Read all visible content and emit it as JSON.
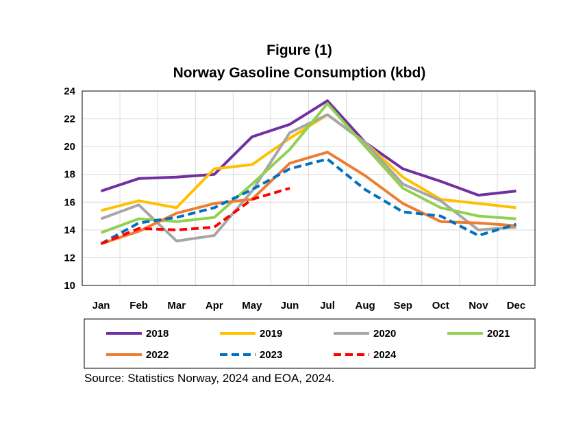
{
  "chart_data": {
    "type": "line",
    "title": "Figure (1)",
    "subtitle": "Norway Gasoline Consumption (kbd)",
    "categories": [
      "Jan",
      "Feb",
      "Mar",
      "Apr",
      "May",
      "Jun",
      "Jul",
      "Aug",
      "Sep",
      "Oct",
      "Nov",
      "Dec"
    ],
    "ylim": [
      10,
      24
    ],
    "yticks": [
      "10",
      "12",
      "14",
      "16",
      "18",
      "20",
      "22",
      "24"
    ],
    "grid": true,
    "legend_position": "bottom",
    "series": [
      {
        "name": "2018",
        "color": "#7030A0",
        "dashed": false,
        "values": [
          16.8,
          17.7,
          17.8,
          18.0,
          20.7,
          21.6,
          23.3,
          20.3,
          18.4,
          17.5,
          16.5,
          16.8
        ]
      },
      {
        "name": "2019",
        "color": "#FFC000",
        "dashed": false,
        "values": [
          15.4,
          16.1,
          15.6,
          18.4,
          18.7,
          20.6,
          22.3,
          20.3,
          17.8,
          16.2,
          15.9,
          15.6
        ]
      },
      {
        "name": "2020",
        "color": "#A6A6A6",
        "dashed": false,
        "values": [
          14.8,
          15.8,
          13.2,
          13.6,
          16.8,
          21.0,
          22.3,
          20.3,
          17.3,
          16.1,
          14.0,
          14.2
        ]
      },
      {
        "name": "2021",
        "color": "#92D050",
        "dashed": false,
        "values": [
          13.8,
          14.8,
          14.6,
          14.9,
          17.3,
          19.8,
          23.1,
          20.0,
          17.0,
          15.6,
          15.0,
          14.8
        ]
      },
      {
        "name": "2022",
        "color": "#ED7D31",
        "dashed": false,
        "values": [
          13.0,
          13.9,
          15.2,
          15.9,
          16.2,
          18.8,
          19.6,
          17.9,
          15.9,
          14.6,
          14.5,
          14.3
        ]
      },
      {
        "name": "2023",
        "color": "#0070C0",
        "dashed": true,
        "values": [
          13.0,
          14.5,
          14.9,
          15.6,
          16.9,
          18.4,
          19.1,
          16.9,
          15.3,
          15.0,
          13.6,
          14.4
        ]
      },
      {
        "name": "2024",
        "color": "#FF0000",
        "dashed": true,
        "values": [
          13.0,
          14.1,
          14.0,
          14.2,
          16.2,
          17.0,
          null,
          null,
          null,
          null,
          null,
          null
        ]
      }
    ],
    "source": "Source: Statistics Norway, 2024 and EOA, 2024."
  }
}
